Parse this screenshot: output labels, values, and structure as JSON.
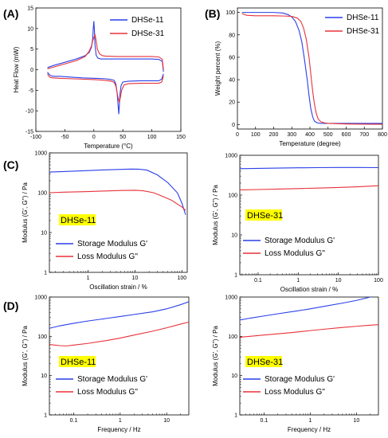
{
  "panels": [
    {
      "id": "A",
      "letter": "(A)",
      "type": "line",
      "xlabel": "Temperature (°C)",
      "ylabel": "Heat Flow (mW)",
      "xlim": [
        -100,
        150
      ],
      "ylim": [
        -15,
        15
      ],
      "xticks": [
        -100,
        -50,
        0,
        50,
        100,
        150
      ],
      "yticks": [
        -15,
        -10,
        -5,
        0,
        5,
        10,
        15
      ],
      "yscale": "linear",
      "legend": "top-right",
      "series": [
        {
          "name": "DHSe-11",
          "color": "#2a3fe8",
          "x": [
            -80,
            -70,
            -50,
            -30,
            -15,
            -8,
            -4,
            -2,
            -1,
            0,
            1,
            2,
            4,
            7,
            12,
            20,
            40,
            60,
            80,
            100,
            112,
            118,
            120
          ],
          "y": [
            0.5,
            1.0,
            1.8,
            2.6,
            3.4,
            4.2,
            5.5,
            7.5,
            10.0,
            11.8,
            9.5,
            6.0,
            3.5,
            2.8,
            2.6,
            2.6,
            2.6,
            2.6,
            2.6,
            2.6,
            2.5,
            2.0,
            -0.5
          ]
        },
        {
          "name": "DHSe-11",
          "color": "#2a3fe8",
          "x": [
            120,
            117,
            112,
            100,
            80,
            60,
            50,
            47,
            45,
            44,
            43,
            42,
            40,
            38,
            35,
            30,
            20,
            0,
            -20,
            -40,
            -60,
            -70,
            -75,
            -78,
            -80
          ],
          "y": [
            -1.0,
            -2.3,
            -2.7,
            -2.7,
            -2.7,
            -2.8,
            -3.0,
            -3.8,
            -6.0,
            -8.5,
            -10.8,
            -9.0,
            -5.5,
            -3.5,
            -2.6,
            -2.4,
            -2.2,
            -2.1,
            -2.0,
            -1.8,
            -1.6,
            -1.6,
            -1.4,
            -1.0,
            -0.6
          ]
        },
        {
          "name": "DHSe-31",
          "color": "#e8323a",
          "x": [
            -80,
            -70,
            -50,
            -30,
            -15,
            -8,
            -4,
            -2,
            0,
            2,
            4,
            6,
            10,
            15,
            20,
            40,
            60,
            80,
            100,
            112,
            118,
            120
          ],
          "y": [
            0.2,
            0.6,
            1.4,
            2.2,
            3.2,
            4.5,
            5.8,
            7.0,
            7.8,
            8.5,
            7.0,
            5.0,
            3.8,
            3.4,
            3.3,
            3.2,
            3.2,
            3.2,
            3.2,
            3.1,
            2.5,
            0.0
          ]
        },
        {
          "name": "DHSe-31",
          "color": "#e8323a",
          "x": [
            120,
            117,
            112,
            100,
            80,
            60,
            52,
            48,
            46,
            44,
            42,
            40,
            38,
            35,
            30,
            20,
            0,
            -20,
            -40,
            -60,
            -70,
            -75,
            -78,
            -80
          ],
          "y": [
            -1.5,
            -3.0,
            -3.3,
            -3.3,
            -3.3,
            -3.4,
            -3.7,
            -5.0,
            -6.5,
            -8.0,
            -7.0,
            -5.5,
            -4.0,
            -3.1,
            -2.8,
            -2.6,
            -2.4,
            -2.3,
            -2.2,
            -2.1,
            -2.0,
            -1.9,
            -1.5,
            -1.0
          ]
        }
      ]
    },
    {
      "id": "B",
      "letter": "(B)",
      "type": "line",
      "xlabel": "Temperature (degree)",
      "ylabel": "Weight percent (%)",
      "xlim": [
        0,
        800
      ],
      "ylim": [
        -4,
        104
      ],
      "xticks": [
        0,
        100,
        200,
        300,
        400,
        500,
        600,
        700,
        800
      ],
      "yticks": [
        0,
        20,
        40,
        60,
        80,
        100
      ],
      "yscale": "linear",
      "legend": "top-right",
      "series": [
        {
          "name": "DHSe-11",
          "color": "#2a3fe8",
          "x": [
            25,
            100,
            200,
            250,
            280,
            300,
            320,
            340,
            355,
            370,
            385,
            395,
            405,
            415,
            425,
            440,
            460,
            500,
            600,
            700,
            800
          ],
          "y": [
            100,
            100,
            100,
            99.5,
            98,
            96,
            92,
            84,
            74,
            58,
            40,
            26,
            14,
            7,
            3,
            1.5,
            1,
            1,
            1,
            1,
            1
          ]
        },
        {
          "name": "DHSe-31",
          "color": "#e8323a",
          "x": [
            25,
            50,
            100,
            200,
            260,
            300,
            330,
            350,
            365,
            380,
            395,
            405,
            415,
            425,
            435,
            445,
            460,
            480,
            500,
            600,
            700,
            800
          ],
          "y": [
            99,
            97.5,
            97,
            97,
            96.8,
            96.5,
            95,
            92,
            86,
            76,
            60,
            45,
            30,
            18,
            10,
            5,
            2.5,
            1.5,
            1,
            0.5,
            0.3,
            0.2
          ]
        }
      ]
    },
    {
      "id": "C1",
      "letter": "(C)",
      "badge": "DHSe-11",
      "type": "line",
      "xlabel": "Oscillation strain / %",
      "ylabel": "Modulus (G', G'') / Pa",
      "yscale": "log",
      "xscale": "log",
      "xlim": [
        0.15,
        130
      ],
      "ylim": [
        1,
        1000
      ],
      "xticks": [
        1,
        10,
        100
      ],
      "xticklabels": [
        "1",
        "10",
        "100"
      ],
      "yticks": [
        1,
        10,
        100,
        1000
      ],
      "yticklabels": [
        "1",
        "10",
        "100",
        "1000"
      ],
      "legend": "middle-left",
      "series": [
        {
          "name": "Storage Modulus G'",
          "color": "#2a3fe8",
          "x": [
            0.15,
            0.3,
            1,
            2,
            5,
            8,
            12,
            18,
            30,
            50,
            80,
            100,
            120
          ],
          "y": [
            330,
            340,
            360,
            372,
            385,
            392,
            390,
            370,
            280,
            180,
            100,
            55,
            28
          ]
        },
        {
          "name": "Loss Modulus G''",
          "color": "#e8323a",
          "x": [
            0.15,
            0.3,
            1,
            2,
            5,
            10,
            15,
            25,
            40,
            60,
            80,
            100,
            120
          ],
          "y": [
            100,
            103,
            107,
            110,
            114,
            115,
            112,
            100,
            80,
            65,
            52,
            44,
            36
          ]
        }
      ]
    },
    {
      "id": "C2",
      "badge": "DHSe-31",
      "type": "line",
      "xlabel": "Oscillation strain / %",
      "ylabel": "Modulus (G', G'') / Pa",
      "yscale": "log",
      "xscale": "log",
      "xlim": [
        0.035,
        100
      ],
      "ylim": [
        1,
        1000
      ],
      "xticks": [
        0.1,
        1,
        10,
        100
      ],
      "xticklabels": [
        "0.1",
        "1",
        "10",
        "100"
      ],
      "yticks": [
        1,
        10,
        100,
        1000
      ],
      "yticklabels": [
        "1",
        "10",
        "100",
        "1000"
      ],
      "legend": "middle-left",
      "series": [
        {
          "name": "Storage Modulus G'",
          "color": "#2a3fe8",
          "x": [
            0.035,
            0.1,
            0.3,
            1,
            3,
            10,
            30,
            100
          ],
          "y": [
            460,
            470,
            478,
            485,
            490,
            495,
            495,
            490
          ]
        },
        {
          "name": "Loss Modulus G''",
          "color": "#e8323a",
          "x": [
            0.035,
            0.1,
            0.3,
            1,
            3,
            10,
            30,
            100
          ],
          "y": [
            135,
            138,
            142,
            146,
            150,
            155,
            162,
            172
          ]
        }
      ]
    },
    {
      "id": "D1",
      "letter": "(D)",
      "badge": "DHSe-11",
      "type": "line",
      "xlabel": "Frequency / Hz",
      "ylabel": "Modulus (G', G'') / Pa",
      "yscale": "log",
      "xscale": "log",
      "xlim": [
        0.03,
        30
      ],
      "ylim": [
        1,
        1000
      ],
      "xticks": [
        0.1,
        1,
        10
      ],
      "xticklabels": [
        "0.1",
        "1",
        "10"
      ],
      "yticks": [
        1,
        10,
        100,
        1000
      ],
      "yticklabels": [
        "1",
        "10",
        "100",
        "1000"
      ],
      "legend": "bottom-left",
      "series": [
        {
          "name": "Storage Modulus G'",
          "color": "#2a3fe8",
          "x": [
            0.03,
            0.05,
            0.1,
            0.2,
            0.5,
            1,
            2,
            5,
            10,
            20,
            30
          ],
          "y": [
            160,
            185,
            215,
            245,
            285,
            320,
            360,
            420,
            500,
            640,
            760
          ]
        },
        {
          "name": "Loss Modulus G''",
          "color": "#e8323a",
          "x": [
            0.03,
            0.05,
            0.07,
            0.1,
            0.2,
            0.5,
            1,
            2,
            5,
            10,
            20,
            30
          ],
          "y": [
            62,
            58,
            57,
            60,
            66,
            78,
            90,
            108,
            135,
            165,
            205,
            230
          ]
        }
      ]
    },
    {
      "id": "D2",
      "badge": "DHSe-31",
      "type": "line",
      "xlabel": "Frequency / Hz",
      "ylabel": "Modulus (G', G'') / Pa",
      "yscale": "log",
      "xscale": "log",
      "xlim": [
        0.03,
        30
      ],
      "ylim": [
        1,
        1000
      ],
      "xticks": [
        0.1,
        1,
        10
      ],
      "xticklabels": [
        "0.1",
        "1",
        "10"
      ],
      "yticks": [
        1,
        10,
        100,
        1000
      ],
      "yticklabels": [
        "1",
        "10",
        "100",
        "1000"
      ],
      "legend": "bottom-left",
      "series": [
        {
          "name": "Storage Modulus G'",
          "color": "#2a3fe8",
          "x": [
            0.03,
            0.05,
            0.1,
            0.2,
            0.5,
            1,
            2,
            5,
            10,
            20,
            30
          ],
          "y": [
            260,
            290,
            330,
            375,
            440,
            500,
            580,
            700,
            820,
            1000,
            1120
          ]
        },
        {
          "name": "Loss Modulus G''",
          "color": "#e8323a",
          "x": [
            0.03,
            0.05,
            0.1,
            0.2,
            0.5,
            1,
            2,
            5,
            10,
            20,
            30
          ],
          "y": [
            95,
            100,
            108,
            116,
            128,
            140,
            152,
            168,
            180,
            192,
            198
          ]
        }
      ]
    }
  ],
  "colors": {
    "blue": "#2a3fe8",
    "red": "#e8323a",
    "badge": "#ffff00"
  }
}
